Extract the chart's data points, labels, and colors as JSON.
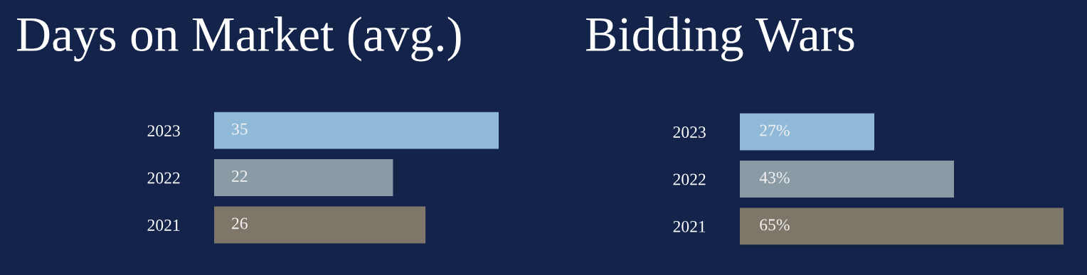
{
  "chart_data": [
    {
      "type": "bar",
      "title": "Days on Market (avg.)",
      "orientation": "horizontal",
      "categories": [
        "2023",
        "2022",
        "2021"
      ],
      "values": [
        35,
        22,
        26
      ],
      "colors": [
        "#8fb9d6",
        "#8a9ba5",
        "#7f766a"
      ],
      "data_labels": true
    },
    {
      "type": "bar",
      "title": "Bidding Wars",
      "orientation": "horizontal",
      "categories": [
        "2023",
        "2022",
        "2021"
      ],
      "values": [
        27,
        43,
        65
      ],
      "value_labels": [
        "27%",
        "43%",
        "65%"
      ],
      "colors": [
        "#8fb9d6",
        "#8a9ba5",
        "#7f766a"
      ]
    }
  ]
}
